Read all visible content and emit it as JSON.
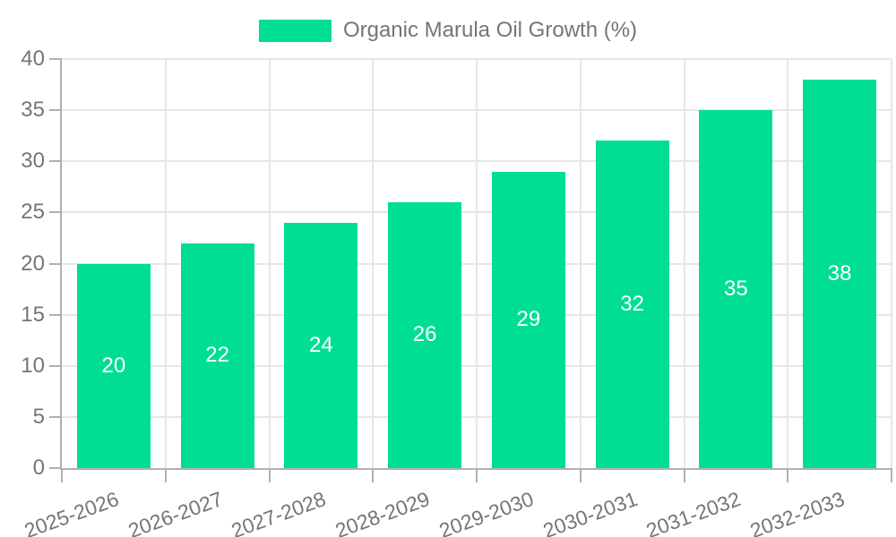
{
  "chart_data": {
    "type": "bar",
    "title": "",
    "legend": {
      "label": "Organic Marula Oil Growth (%)",
      "position": "top-center"
    },
    "categories": [
      "2025-2026",
      "2026-2027",
      "2027-2028",
      "2028-2029",
      "2029-2030",
      "2030-2031",
      "2031-2032",
      "2032-2033"
    ],
    "values": [
      20,
      22,
      24,
      26,
      29,
      32,
      35,
      38
    ],
    "xlabel": "",
    "ylabel": "",
    "ylim": [
      0,
      40
    ],
    "yticks": [
      0,
      5,
      10,
      15,
      20,
      25,
      30,
      35,
      40
    ],
    "grid": {
      "horizontal": true,
      "vertical": true
    },
    "bar_value_labels": {
      "position": "inside-center",
      "color": "#ffffff"
    },
    "x_label_rotation_deg": -20,
    "colors": {
      "bar": "#00DE95",
      "grid": "#e7e7e7",
      "axis": "#b0b0b0",
      "tick": "#b0b0b0",
      "label_text": "#757575",
      "background": "#ffffff"
    }
  }
}
